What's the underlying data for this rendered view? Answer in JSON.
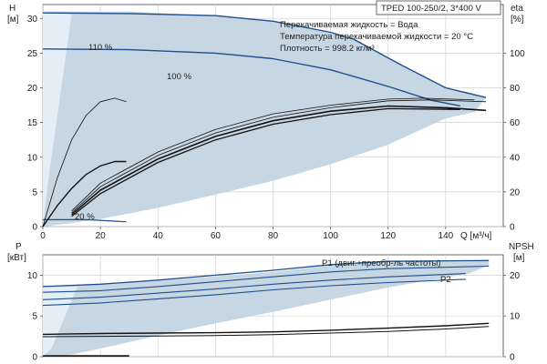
{
  "colors": {
    "band": "#c7d6e3",
    "band_light": "#e4eef6",
    "curve_blue": "#1f4e8c",
    "curve_black": "#111111",
    "grid": "#d2d2d2",
    "axis": "#555555"
  },
  "chart_data": [
    {
      "type": "line",
      "id": "head-efficiency",
      "product_title": "TPED 100-250/2, 3*400 V",
      "info_lines": [
        "Перекачиваемая жидкость = Вода",
        "Температура перекачиваемой жидкости = 20 °C",
        "Плотность = 998.2 кг/м³"
      ],
      "ylabel_left_line1": "H",
      "ylabel_left_line2": "[м]",
      "ylabel_right_line1": "eta",
      "ylabel_right_line2": "[%]",
      "xlabel": "Q [м³/ч]",
      "xlim": [
        0,
        160
      ],
      "ylim_left": [
        0,
        32
      ],
      "ylim_right": [
        0,
        128
      ],
      "xticks": [
        0,
        20,
        40,
        60,
        80,
        100,
        120,
        140
      ],
      "yticks_left": [
        0,
        5,
        10,
        15,
        20,
        25,
        30
      ],
      "yticks_right": [
        0,
        20,
        40,
        60,
        80,
        100
      ],
      "grid": true,
      "annotations": [
        {
          "text": "110 %",
          "x": 20,
          "y": 31.0
        },
        {
          "text": "100 %",
          "x": 47,
          "y": 26.2
        },
        {
          "text": "20 %",
          "x": 13,
          "y": 1.2
        }
      ],
      "band_envelope": [
        [
          0,
          31
        ],
        [
          30,
          31
        ],
        [
          60,
          30.4
        ],
        [
          80,
          29.6
        ],
        [
          100,
          28
        ],
        [
          108,
          27
        ],
        [
          125,
          23.2
        ],
        [
          140,
          20
        ],
        [
          154,
          18.6
        ],
        [
          150,
          16.5
        ],
        [
          140,
          15.6
        ],
        [
          120,
          11.8
        ],
        [
          100,
          9
        ],
        [
          80,
          6.6
        ],
        [
          60,
          4.6
        ],
        [
          40,
          2.7
        ],
        [
          20,
          1.1
        ],
        [
          10,
          0.5
        ],
        [
          0,
          0
        ]
      ],
      "band_light_envelope": [
        [
          0,
          31
        ],
        [
          10,
          30.6
        ],
        [
          2,
          7
        ],
        [
          0,
          0
        ]
      ],
      "series": [
        {
          "label": "110 %",
          "axis": "left",
          "color": "blue",
          "width": 1.4,
          "points": [
            [
              0,
              30.8
            ],
            [
              30,
              30.7
            ],
            [
              60,
              30.4
            ],
            [
              80,
              29.6
            ],
            [
              100,
              28
            ],
            [
              108,
              27
            ],
            [
              125,
              23.2
            ],
            [
              140,
              20
            ],
            [
              154,
              18.6
            ]
          ]
        },
        {
          "label": "100 %",
          "axis": "left",
          "color": "blue",
          "width": 1.4,
          "points": [
            [
              0,
              25.6
            ],
            [
              30,
              25.5
            ],
            [
              60,
              25
            ],
            [
              80,
              24.2
            ],
            [
              100,
              22.6
            ],
            [
              120,
              20.2
            ],
            [
              135,
              18.2
            ],
            [
              145,
              17.4
            ]
          ]
        },
        {
          "label": "20 %",
          "axis": "left",
          "color": "blue",
          "width": 1.2,
          "points": [
            [
              0,
              1.0
            ],
            [
              15,
              1.0
            ],
            [
              29,
              0.7
            ]
          ]
        },
        {
          "axis": "right",
          "color": "black",
          "width": 0.8,
          "points": [
            [
              0,
              0
            ],
            [
              5,
              28
            ],
            [
              10,
              50
            ],
            [
              15,
              64
            ],
            [
              20,
              72
            ],
            [
              25,
              74
            ],
            [
              29,
              72
            ]
          ]
        },
        {
          "axis": "right",
          "color": "black",
          "width": 1.4,
          "points": [
            [
              0,
              0
            ],
            [
              5,
              12
            ],
            [
              10,
              22
            ],
            [
              15,
              30
            ],
            [
              20,
              35
            ],
            [
              25,
              37.5
            ],
            [
              29,
              37.5
            ]
          ]
        },
        {
          "axis": "right",
          "color": "black",
          "width": 0.8,
          "points": [
            [
              10,
              9
            ],
            [
              20,
              25
            ],
            [
              40,
              43
            ],
            [
              60,
              56
            ],
            [
              80,
              65
            ],
            [
              100,
              70
            ],
            [
              120,
              73.5
            ],
            [
              132,
              74
            ],
            [
              150,
              73
            ]
          ]
        },
        {
          "axis": "right",
          "color": "black",
          "width": 0.8,
          "points": [
            [
              10,
              8
            ],
            [
              20,
              23
            ],
            [
              40,
              41
            ],
            [
              60,
              54
            ],
            [
              80,
              63
            ],
            [
              100,
              68.5
            ],
            [
              120,
              72.5
            ],
            [
              135,
              73
            ],
            [
              154,
              72
            ]
          ]
        },
        {
          "axis": "right",
          "color": "black",
          "width": 1.6,
          "points": [
            [
              10,
              7
            ],
            [
              20,
              21
            ],
            [
              40,
              39
            ],
            [
              60,
              52
            ],
            [
              80,
              61
            ],
            [
              100,
              66.5
            ],
            [
              120,
              69.5
            ],
            [
              140,
              68.5
            ],
            [
              154,
              67
            ]
          ]
        },
        {
          "axis": "right",
          "color": "black",
          "width": 1.3,
          "points": [
            [
              10,
              6
            ],
            [
              20,
              19
            ],
            [
              40,
              37
            ],
            [
              60,
              50
            ],
            [
              80,
              59
            ],
            [
              100,
              64.5
            ],
            [
              120,
              68
            ],
            [
              145,
              67.5
            ]
          ]
        }
      ]
    },
    {
      "type": "line",
      "id": "power-npsh",
      "ylabel_left_line1": "P",
      "ylabel_left_line2": "[кВт]",
      "ylabel_right_line1": "NPSH",
      "ylabel_right_line2": "[м]",
      "xlim": [
        0,
        160
      ],
      "ylim_left": [
        0,
        12.5
      ],
      "ylim_right": [
        0,
        25
      ],
      "yticks_left": [
        0,
        5,
        10
      ],
      "yticks_right": [
        0,
        10,
        20
      ],
      "grid": true,
      "annotations": [
        {
          "text": "P1 (двиг.+преобр-ль частоты)",
          "x": 108,
          "y": 11.9
        },
        {
          "text": "P2",
          "x": 148,
          "y": 10.4
        }
      ],
      "band_envelope": [
        [
          0,
          8.5
        ],
        [
          40,
          9.3
        ],
        [
          80,
          10.4
        ],
        [
          110,
          11.6
        ],
        [
          155,
          11.8
        ],
        [
          155,
          11.2
        ],
        [
          148,
          10.2
        ],
        [
          120,
          8.5
        ],
        [
          80,
          5.5
        ],
        [
          60,
          4.1
        ],
        [
          40,
          2.6
        ],
        [
          20,
          1.0
        ],
        [
          10,
          0.25
        ],
        [
          0,
          0
        ]
      ],
      "band_light_envelope": [
        [
          0,
          8.5
        ],
        [
          12,
          8.6
        ],
        [
          3,
          1
        ],
        [
          0,
          0
        ]
      ],
      "series": [
        {
          "label": "P1 (двиг.+преобр-ль частоты)",
          "axis": "left",
          "color": "blue",
          "width": 1.3,
          "points": [
            [
              0,
              8.6
            ],
            [
              20,
              8.9
            ],
            [
              40,
              9.4
            ],
            [
              60,
              10
            ],
            [
              80,
              10.6
            ],
            [
              100,
              11.3
            ],
            [
              120,
              11.7
            ],
            [
              155,
              11.8
            ]
          ]
        },
        {
          "axis": "left",
          "color": "blue",
          "width": 1.1,
          "points": [
            [
              0,
              7.9
            ],
            [
              20,
              8.1
            ],
            [
              40,
              8.6
            ],
            [
              60,
              9.2
            ],
            [
              80,
              9.8
            ],
            [
              100,
              10.4
            ],
            [
              120,
              10.8
            ],
            [
              155,
              11.1
            ]
          ]
        },
        {
          "label": "P2",
          "axis": "left",
          "color": "blue",
          "width": 1.1,
          "points": [
            [
              0,
              7.0
            ],
            [
              20,
              7.3
            ],
            [
              40,
              7.8
            ],
            [
              60,
              8.3
            ],
            [
              80,
              8.9
            ],
            [
              100,
              9.4
            ],
            [
              120,
              9.8
            ],
            [
              147,
              10.2
            ]
          ]
        },
        {
          "axis": "left",
          "color": "blue",
          "width": 1.1,
          "points": [
            [
              0,
              6.3
            ],
            [
              20,
              6.6
            ],
            [
              40,
              7.1
            ],
            [
              60,
              7.6
            ],
            [
              80,
              8.2
            ],
            [
              100,
              8.7
            ],
            [
              120,
              9.1
            ],
            [
              147,
              9.5
            ]
          ]
        },
        {
          "axis": "right",
          "color": "black",
          "width": 1.4,
          "points": [
            [
              0,
              5.5
            ],
            [
              10,
              5.6
            ],
            [
              20,
              5.7
            ],
            [
              40,
              5.8
            ],
            [
              60,
              5.9
            ],
            [
              80,
              6.1
            ],
            [
              100,
              6.5
            ],
            [
              120,
              7.0
            ],
            [
              140,
              7.6
            ],
            [
              155,
              8.2
            ]
          ]
        },
        {
          "axis": "right",
          "color": "black",
          "width": 1.0,
          "points": [
            [
              0,
              4.9
            ],
            [
              20,
              5.0
            ],
            [
              40,
              5.1
            ],
            [
              60,
              5.2
            ],
            [
              80,
              5.4
            ],
            [
              100,
              5.8
            ],
            [
              120,
              6.2
            ],
            [
              140,
              6.8
            ],
            [
              155,
              7.4
            ]
          ]
        },
        {
          "axis": "right",
          "color": "black",
          "width": 1.6,
          "points": [
            [
              0,
              0.2
            ],
            [
              30,
              0.2
            ]
          ]
        }
      ]
    }
  ]
}
